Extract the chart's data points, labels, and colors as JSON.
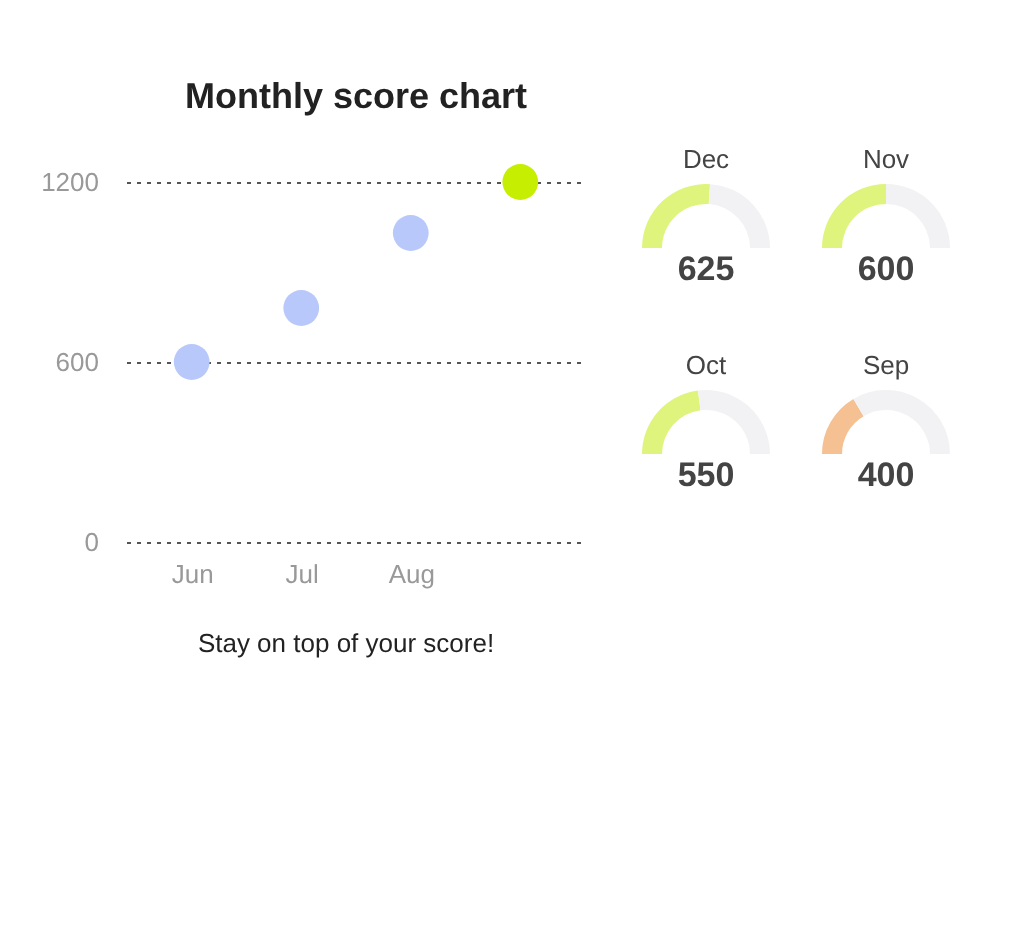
{
  "chart_data": [
    {
      "type": "scatter",
      "title": "Monthly score chart",
      "categories": [
        "Jun",
        "Jul",
        "Aug",
        null
      ],
      "values": [
        600,
        780,
        1030,
        1200
      ],
      "colors": [
        "#b8c8fb",
        "#b8c8fb",
        "#b8c8fb",
        "#c6ee00"
      ],
      "ylim": [
        0,
        1200
      ],
      "yticks": [
        0,
        600,
        1200
      ],
      "grid": "y",
      "marker": "circle",
      "annotations": [
        "Stay on top of your score!"
      ]
    },
    {
      "type": "donut",
      "title": "Dec",
      "categories": [
        null,
        null
      ],
      "values": [
        52,
        48
      ],
      "colors": [
        "#def47c",
        "#f2f2f4"
      ],
      "annotations": [
        "625"
      ]
    },
    {
      "type": "donut",
      "title": "Nov",
      "categories": [
        null,
        null
      ],
      "values": [
        50,
        50
      ],
      "colors": [
        "#def47c",
        "#f2f2f4"
      ],
      "annotations": [
        "600"
      ]
    },
    {
      "type": "donut",
      "title": "Oct",
      "categories": [
        null,
        null
      ],
      "values": [
        46,
        54
      ],
      "colors": [
        "#def47c",
        "#f2f2f4"
      ],
      "annotations": [
        "550"
      ]
    },
    {
      "type": "donut",
      "title": "Sep",
      "categories": [
        null,
        null
      ],
      "values": [
        33,
        67
      ],
      "colors": [
        "#f5c193",
        "#f2f2f4"
      ],
      "annotations": [
        "400"
      ]
    }
  ]
}
